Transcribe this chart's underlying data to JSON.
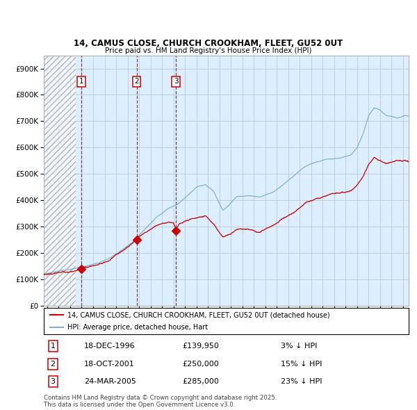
{
  "title_line1": "14, CAMUS CLOSE, CHURCH CROOKHAM, FLEET, GU52 0UT",
  "title_line2": "Price paid vs. HM Land Registry's House Price Index (HPI)",
  "legend_line1": "14, CAMUS CLOSE, CHURCH CROOKHAM, FLEET, GU52 0UT (detached house)",
  "legend_line2": "HPI: Average price, detached house, Hart",
  "footer": "Contains HM Land Registry data © Crown copyright and database right 2025.\nThis data is licensed under the Open Government Licence v3.0.",
  "transactions": [
    {
      "num": 1,
      "date": "18-DEC-1996",
      "price": 139950,
      "pct": "3%",
      "dir": "↓",
      "year_x": 1996.96
    },
    {
      "num": 2,
      "date": "18-OCT-2001",
      "price": 250000,
      "pct": "15%",
      "dir": "↓",
      "year_x": 2001.79
    },
    {
      "num": 3,
      "date": "24-MAR-2005",
      "price": 285000,
      "pct": "23%",
      "dir": "↓",
      "year_x": 2005.23
    }
  ],
  "hpi_color": "#7bafd4",
  "price_color": "#cc0000",
  "dashed_color": "#cc0000",
  "background_main": "#ddeeff",
  "grid_color": "#b0c4d8",
  "ylim": [
    0,
    950000
  ],
  "xlim_start": 1993.7,
  "xlim_end": 2025.5,
  "hatch_end": 1996.5,
  "yticks": [
    0,
    100000,
    200000,
    300000,
    400000,
    500000,
    600000,
    700000,
    800000,
    900000
  ]
}
